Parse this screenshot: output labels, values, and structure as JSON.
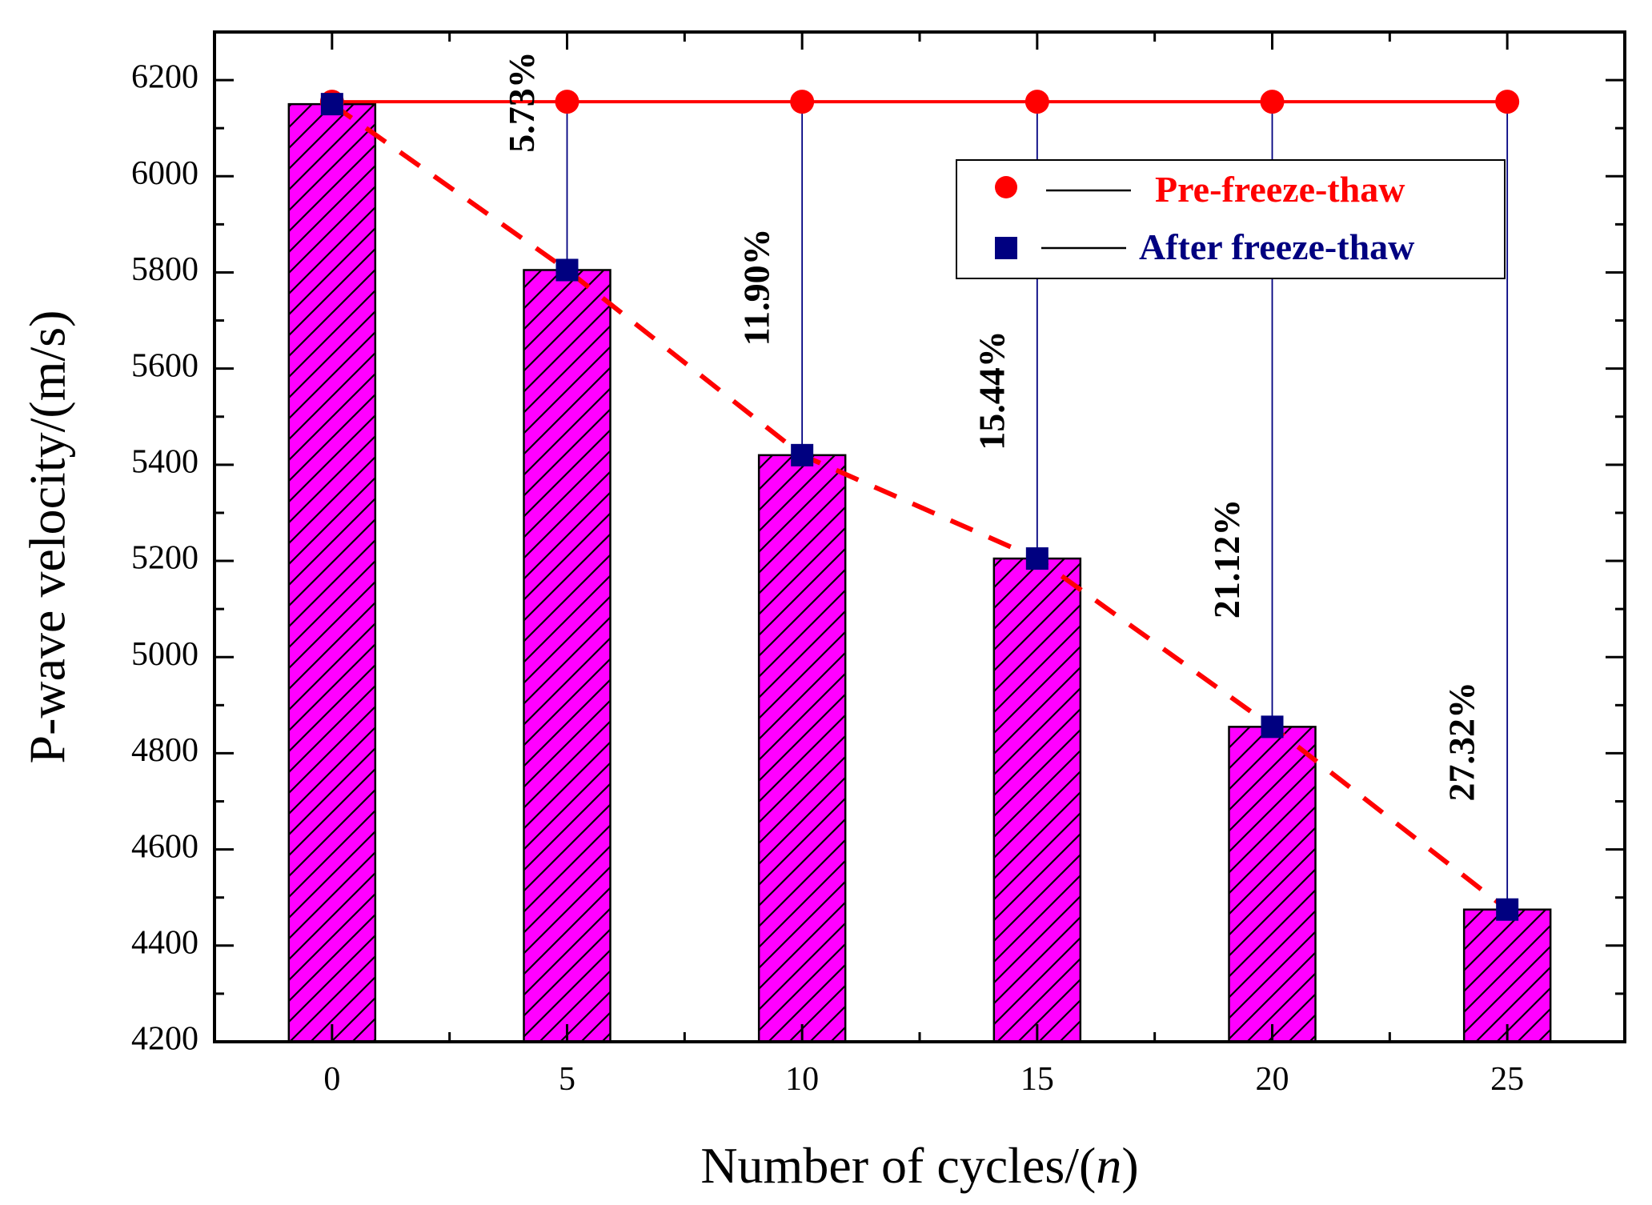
{
  "chart_data": {
    "type": "bar",
    "categories": [
      "0",
      "5",
      "10",
      "15",
      "20",
      "25"
    ],
    "x": [
      0,
      5,
      10,
      15,
      20,
      25
    ],
    "series": [
      {
        "name": "Pre-freeze-thaw",
        "kind": "line-markers",
        "marker": "circle",
        "color": "#ff0000",
        "values": [
          6155,
          6155,
          6155,
          6155,
          6155,
          6155
        ]
      },
      {
        "name": "After freeze-thaw",
        "kind": "bars-and-markers",
        "marker": "square",
        "color": "#000080",
        "bar_fill": "#ff00ff",
        "values": [
          6150,
          5805,
          5420,
          5205,
          4855,
          4475
        ]
      }
    ],
    "reduction_labels": [
      {
        "x": 5,
        "text": "5.73%"
      },
      {
        "x": 10,
        "text": "11.90%"
      },
      {
        "x": 15,
        "text": "15.44%"
      },
      {
        "x": 20,
        "text": "21.12%"
      },
      {
        "x": 25,
        "text": "27.32%"
      }
    ],
    "trend_line": {
      "style": "dashed",
      "color": "#ff0000"
    },
    "xlabel_main": "Number of cycles/(",
    "xlabel_var": "n",
    "xlabel_end": ")",
    "ylabel": "P-wave velocity/(m/s)",
    "ylim": [
      4200,
      6300
    ],
    "yticks": [
      4200,
      4400,
      4600,
      4800,
      5000,
      5200,
      5400,
      5600,
      5800,
      6000,
      6200
    ],
    "xlim": [
      -2.5,
      27.5
    ],
    "legend_position": "top-right",
    "grid": false
  }
}
